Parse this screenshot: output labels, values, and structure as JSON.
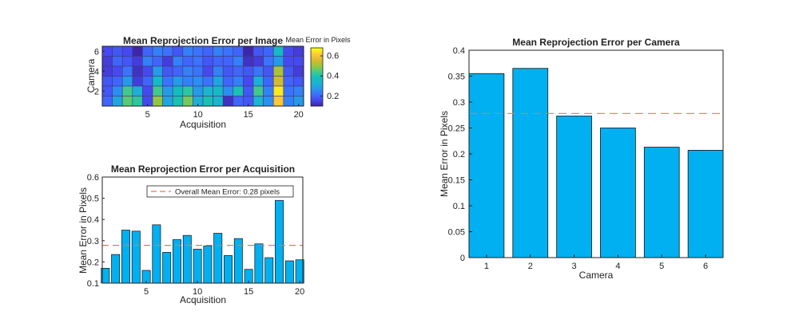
{
  "colors": {
    "bar": "#00B0F0",
    "mean_line": "#E0795A",
    "parula": [
      "#3E26A8",
      "#4748F0",
      "#3D70FE",
      "#2797EB",
      "#1CB4D1",
      "#12BEB9",
      "#48CB86",
      "#9CC63B",
      "#D7BA30",
      "#FCC738",
      "#F9FB15"
    ]
  },
  "chart_data": [
    {
      "id": "heatmap",
      "type": "heatmap",
      "title": "Mean Reprojection Error per Image",
      "xlabel": "Acquisition",
      "ylabel": "Camera",
      "colorbar_title": "Mean Error in Pixels",
      "x_ticks": [
        5,
        10,
        15,
        20
      ],
      "y_ticks": [
        2,
        4,
        6
      ],
      "colorbar_ticks": [
        0.2,
        0.4,
        0.6
      ],
      "clim": [
        0.1,
        0.68
      ],
      "rows_top_to_bottom": [
        [
          0.16,
          0.18,
          0.16,
          0.08,
          0.2,
          0.24,
          0.22,
          0.18,
          0.24,
          0.22,
          0.2,
          0.24,
          0.22,
          0.2,
          0.1,
          0.18,
          0.2,
          0.36,
          0.16,
          0.14
        ],
        [
          0.14,
          0.2,
          0.18,
          0.14,
          0.24,
          0.2,
          0.14,
          0.24,
          0.2,
          0.22,
          0.18,
          0.2,
          0.2,
          0.24,
          0.12,
          0.14,
          0.22,
          0.28,
          0.16,
          0.16
        ],
        [
          0.14,
          0.16,
          0.22,
          0.12,
          0.16,
          0.28,
          0.18,
          0.2,
          0.24,
          0.22,
          0.16,
          0.24,
          0.18,
          0.2,
          0.18,
          0.22,
          0.18,
          0.52,
          0.18,
          0.14
        ],
        [
          0.18,
          0.2,
          0.28,
          0.14,
          0.2,
          0.36,
          0.22,
          0.28,
          0.24,
          0.26,
          0.22,
          0.3,
          0.2,
          0.24,
          0.16,
          0.32,
          0.2,
          0.56,
          0.2,
          0.18
        ],
        [
          0.18,
          0.26,
          0.44,
          0.32,
          0.16,
          0.44,
          0.28,
          0.38,
          0.42,
          0.28,
          0.34,
          0.36,
          0.26,
          0.4,
          0.18,
          0.44,
          0.24,
          0.66,
          0.22,
          0.24
        ],
        [
          0.2,
          0.3,
          0.46,
          0.42,
          0.16,
          0.5,
          0.3,
          0.4,
          0.48,
          0.32,
          0.4,
          0.34,
          0.12,
          0.2,
          0.18,
          0.34,
          0.26,
          0.62,
          0.24,
          0.28
        ]
      ]
    },
    {
      "id": "per-acquisition",
      "type": "bar",
      "title": "Mean Reprojection Error per Acquisition",
      "xlabel": "Acquisition",
      "ylabel": "Mean Error in Pixels",
      "categories": [
        1,
        2,
        3,
        4,
        5,
        6,
        7,
        8,
        9,
        10,
        11,
        12,
        13,
        14,
        15,
        16,
        17,
        18,
        19,
        20
      ],
      "values": [
        0.17,
        0.235,
        0.35,
        0.345,
        0.16,
        0.375,
        0.245,
        0.305,
        0.325,
        0.26,
        0.275,
        0.335,
        0.23,
        0.31,
        0.165,
        0.285,
        0.22,
        0.49,
        0.205,
        0.21
      ],
      "x_ticks": [
        5,
        10,
        15,
        20
      ],
      "y_ticks": [
        0.1,
        0.2,
        0.3,
        0.4,
        0.5,
        0.6
      ],
      "ylim": [
        0.1,
        0.6
      ],
      "mean": 0.278,
      "legend": "Overall Mean Error: 0.28 pixels",
      "legend_position": "top-right"
    },
    {
      "id": "per-camera",
      "type": "bar",
      "title": "Mean Reprojection Error per Camera",
      "xlabel": "Camera",
      "ylabel": "Mean Error in Pixels",
      "categories": [
        1,
        2,
        3,
        4,
        5,
        6
      ],
      "values": [
        0.355,
        0.365,
        0.273,
        0.25,
        0.213,
        0.207
      ],
      "y_ticks": [
        0,
        0.05,
        0.1,
        0.15,
        0.2,
        0.25,
        0.3,
        0.35,
        0.4
      ],
      "ylim": [
        0,
        0.4
      ],
      "mean": 0.278
    }
  ]
}
